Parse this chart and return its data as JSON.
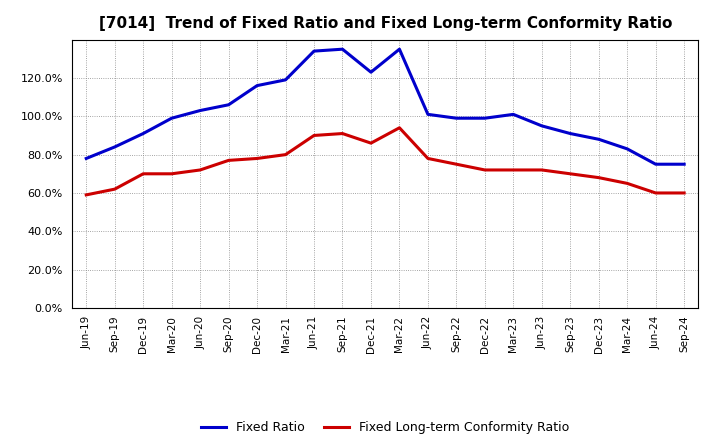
{
  "title": "[7014]  Trend of Fixed Ratio and Fixed Long-term Conformity Ratio",
  "x_labels": [
    "Jun-19",
    "Sep-19",
    "Dec-19",
    "Mar-20",
    "Jun-20",
    "Sep-20",
    "Dec-20",
    "Mar-21",
    "Jun-21",
    "Sep-21",
    "Dec-21",
    "Mar-22",
    "Jun-22",
    "Sep-22",
    "Dec-22",
    "Mar-23",
    "Jun-23",
    "Sep-23",
    "Dec-23",
    "Mar-24",
    "Jun-24",
    "Sep-24"
  ],
  "fixed_ratio": [
    78,
    84,
    91,
    99,
    103,
    106,
    116,
    119,
    134,
    135,
    123,
    135,
    101,
    99,
    99,
    101,
    95,
    91,
    88,
    83,
    75,
    75
  ],
  "fixed_lt_ratio": [
    59,
    62,
    70,
    70,
    72,
    77,
    78,
    80,
    90,
    91,
    86,
    94,
    78,
    75,
    72,
    72,
    72,
    70,
    68,
    65,
    60,
    60
  ],
  "ylim": [
    0,
    140
  ],
  "yticks": [
    0,
    20,
    40,
    60,
    80,
    100,
    120
  ],
  "fixed_ratio_color": "#0000CC",
  "fixed_lt_ratio_color": "#CC0000",
  "background_color": "#FFFFFF",
  "plot_bg_color": "#FFFFFF",
  "grid_color": "#888888",
  "legend_fixed_ratio": "Fixed Ratio",
  "legend_fixed_lt_ratio": "Fixed Long-term Conformity Ratio",
  "line_width": 2.2
}
